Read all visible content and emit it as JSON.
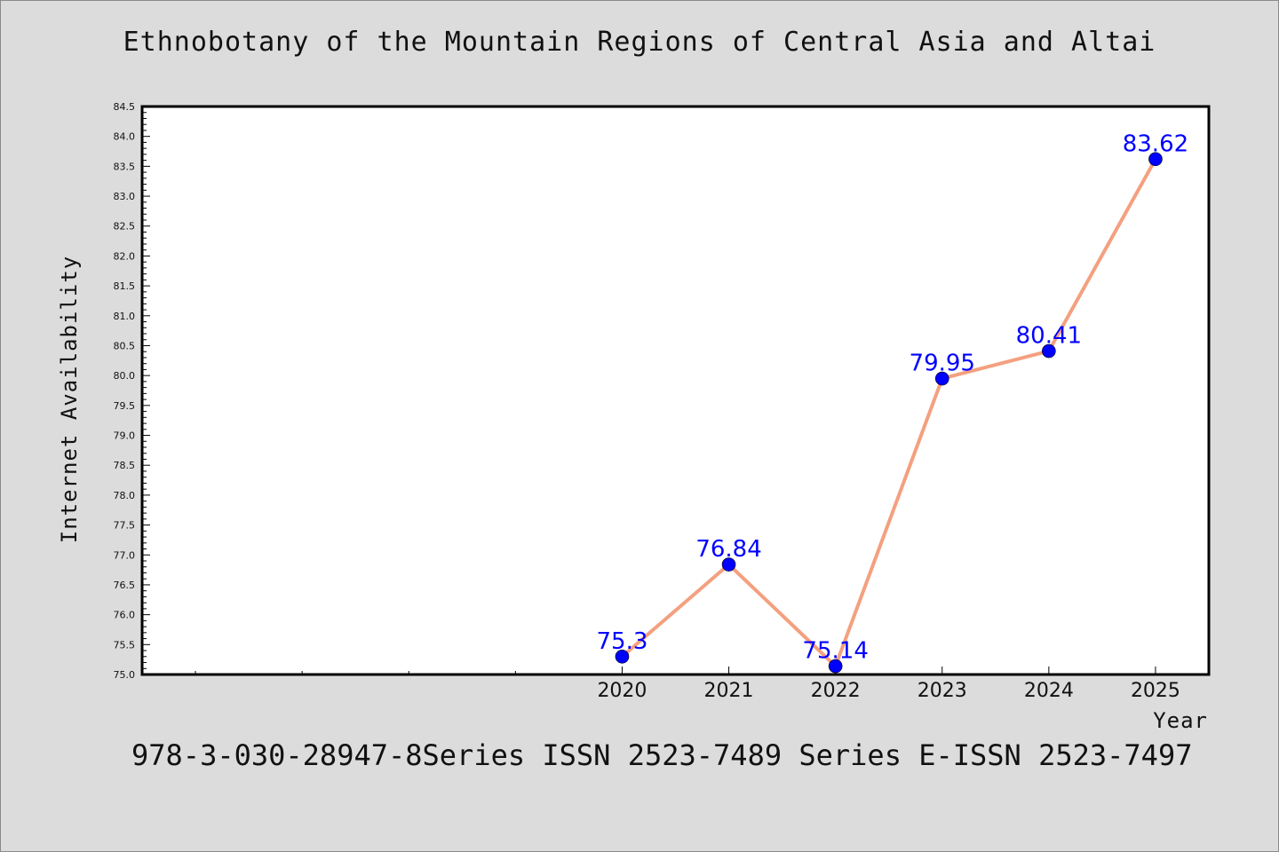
{
  "title": "Ethnobotany of the Mountain Regions of Central Asia and Altai",
  "footer": "978-3-030-28947-8Series ISSN 2523-7489 Series E-ISSN 2523-7497",
  "colors": {
    "background": "#dcdcdc",
    "plot_background": "#ffffff",
    "line": "#f4a07f",
    "marker": "#0000ff",
    "data_label": "#0000ff"
  },
  "chart_data": {
    "type": "line",
    "title": "Ethnobotany of the Mountain Regions of Central Asia and Altai",
    "xlabel": "Year",
    "ylabel": "Internet Availability",
    "x": [
      2020,
      2021,
      2022,
      2023,
      2024,
      2025
    ],
    "x_tick_labels": [
      "2020",
      "2021",
      "2022",
      "2023",
      "2024",
      "2025"
    ],
    "xlim": [
      2015.5,
      2025.5
    ],
    "ylim": [
      75.0,
      84.5
    ],
    "y_ticks": [
      "75.0",
      "75.5",
      "76.0",
      "76.5",
      "77.0",
      "77.5",
      "78.0",
      "78.5",
      "79.0",
      "79.5",
      "80.0",
      "80.5",
      "81.0",
      "81.5",
      "82.0",
      "82.5",
      "83.0",
      "83.5",
      "84.0",
      "84.5"
    ],
    "series": [
      {
        "values": [
          75.3,
          76.84,
          75.14,
          79.95,
          80.41,
          83.62
        ],
        "data_labels": [
          "75.3",
          "76.84",
          "75.14",
          "79.95",
          "80.41",
          "83.62"
        ]
      }
    ],
    "grid": false,
    "legend": "none"
  }
}
